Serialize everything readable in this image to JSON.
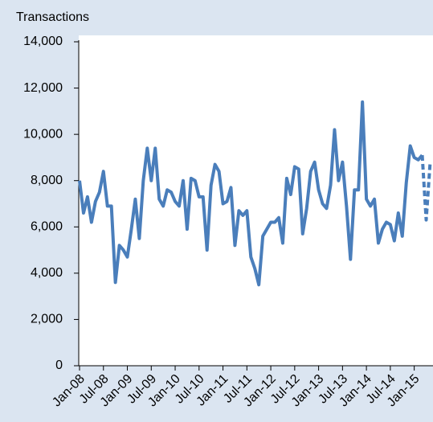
{
  "chart_data": {
    "type": "line",
    "y_label": "Transactions",
    "categories": [
      "Jan-08",
      null,
      null,
      null,
      null,
      null,
      "Jul-08",
      null,
      null,
      null,
      null,
      null,
      "Jan-09",
      null,
      null,
      null,
      null,
      null,
      "Jul-09",
      null,
      null,
      null,
      null,
      null,
      "Jan-10",
      null,
      null,
      null,
      null,
      null,
      "Jul-10",
      null,
      null,
      null,
      null,
      null,
      "Jan-11",
      null,
      null,
      null,
      null,
      null,
      "Jul-11",
      null,
      null,
      null,
      null,
      null,
      "Jan-12",
      null,
      null,
      null,
      null,
      null,
      "Jul-12",
      null,
      null,
      null,
      null,
      null,
      "Jan-13",
      null,
      null,
      null,
      null,
      null,
      "Jul-13",
      null,
      null,
      null,
      null,
      null,
      "Jan-14",
      null,
      null,
      null,
      null,
      null,
      "Jul-14",
      null,
      null,
      null,
      null,
      null,
      "Jan-15",
      null,
      null,
      null,
      null
    ],
    "series": [
      {
        "color": "#4a7ebb",
        "dashed": false,
        "values": [
          8000,
          6600,
          7300,
          6200,
          7100,
          7500,
          8400,
          6900,
          6900,
          3600,
          5200,
          5000,
          4700,
          5900,
          7200,
          5500,
          8000,
          9400,
          8000,
          9400,
          7200,
          6900,
          7600,
          7500,
          7100,
          6900,
          8000,
          5900,
          8100,
          8000,
          7300,
          7300,
          5000,
          7800,
          8700,
          8400,
          7000,
          7100,
          7700,
          5200,
          6700,
          6500,
          6700,
          4700,
          4200,
          3500,
          5600,
          5900,
          6200,
          6200,
          6400,
          5300,
          8100,
          7400,
          8600,
          8500,
          5700,
          6800,
          8400,
          8800,
          7600,
          7000,
          6800,
          7800,
          10200,
          8000,
          8800,
          6900,
          4600,
          7600,
          7600,
          11400,
          7200,
          6900,
          7200,
          5300,
          5900,
          6200,
          6100,
          5400,
          6600,
          5600,
          7900,
          9500,
          9000,
          8900,
          9100,
          null,
          null
        ]
      },
      {
        "color": "#4a7ebb",
        "dashed": true,
        "values": [
          null,
          null,
          null,
          null,
          null,
          null,
          null,
          null,
          null,
          null,
          null,
          null,
          null,
          null,
          null,
          null,
          null,
          null,
          null,
          null,
          null,
          null,
          null,
          null,
          null,
          null,
          null,
          null,
          null,
          null,
          null,
          null,
          null,
          null,
          null,
          null,
          null,
          null,
          null,
          null,
          null,
          null,
          null,
          null,
          null,
          null,
          null,
          null,
          null,
          null,
          null,
          null,
          null,
          null,
          null,
          null,
          null,
          null,
          null,
          null,
          null,
          null,
          null,
          null,
          null,
          null,
          null,
          null,
          null,
          null,
          null,
          null,
          null,
          null,
          null,
          null,
          null,
          null,
          null,
          null,
          null,
          null,
          null,
          null,
          null,
          null,
          9100,
          6300,
          8800
        ]
      }
    ],
    "ylim": [
      0,
      14000
    ],
    "yticks": [
      0,
      {
        "value": 2000,
        "label": "2,000"
      },
      {
        "value": 4000,
        "label": "4,000"
      },
      {
        "value": 6000,
        "label": "6,000"
      },
      {
        "value": 8000,
        "label": "8,000"
      },
      {
        "value": 10000,
        "label": "10,000"
      },
      {
        "value": 12000,
        "label": "12,000"
      },
      {
        "value": 14000,
        "label": "14,000"
      }
    ],
    "grid": false
  }
}
